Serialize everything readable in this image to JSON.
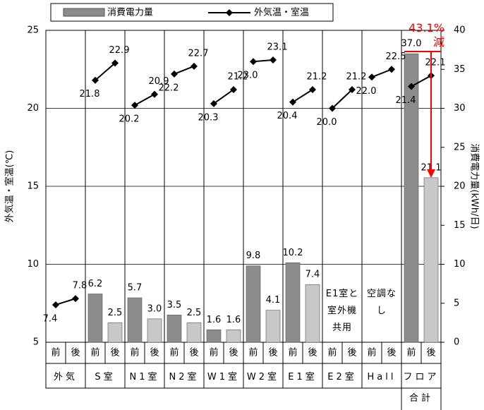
{
  "chart_data": {
    "type": "bar_line",
    "categories": [
      "外気",
      "S室",
      "N1室",
      "N2室",
      "W1室",
      "W2室",
      "E1室",
      "E2室",
      "Hall",
      "フロア合計"
    ],
    "subcategories": [
      "前",
      "後"
    ],
    "group_notes": [
      null,
      null,
      null,
      null,
      null,
      null,
      null,
      "E1室と室外機共用",
      "空調なし",
      null
    ],
    "ylabel": "外気温・室温(℃)",
    "y2label": "消費電力量(kWh/日)",
    "ylim": [
      5,
      25
    ],
    "yticks": [
      5,
      10,
      15,
      20,
      25
    ],
    "y2lim": [
      0,
      40
    ],
    "y2ticks": [
      0,
      5,
      10,
      15,
      20,
      25,
      30,
      35,
      40
    ],
    "grid": true,
    "annotation": "43.1%減",
    "annotation_color": "#ff0000",
    "series": [
      {
        "name": "消費電力量",
        "type": "bar",
        "axis": "y2",
        "colors": [
          "#8c8c8c",
          "#c8c8c8"
        ],
        "values": [
          [
            null,
            null
          ],
          [
            6.2,
            2.5
          ],
          [
            5.7,
            3.0
          ],
          [
            3.5,
            2.5
          ],
          [
            1.6,
            1.6
          ],
          [
            9.8,
            4.1
          ],
          [
            10.2,
            7.4
          ],
          [
            null,
            null
          ],
          [
            null,
            null
          ],
          [
            37,
            21.1
          ]
        ],
        "value_labels": [
          [
            null,
            null
          ],
          [
            "6.2",
            "2.5"
          ],
          [
            "5.7",
            "3.0"
          ],
          [
            "3.5",
            "2.5"
          ],
          [
            "1.6",
            "1.6"
          ],
          [
            "9.8",
            "4.1"
          ],
          [
            "10.2",
            "7.4"
          ],
          [
            null,
            null
          ],
          [
            null,
            null
          ],
          [
            "37.0",
            "21.1"
          ]
        ]
      },
      {
        "name": "外気温・室温",
        "type": "line",
        "color": "#000000",
        "values": [
          [
            7.4,
            7.8
          ],
          [
            21.8,
            22.9
          ],
          [
            20.2,
            20.9
          ],
          [
            22.2,
            22.7
          ],
          [
            20.3,
            21.2
          ],
          [
            23,
            23.1
          ],
          [
            20.4,
            21.2
          ],
          [
            20,
            21.2
          ],
          [
            22,
            22.5
          ],
          [
            21.4,
            22.1
          ]
        ],
        "value_labels": [
          [
            "7.4",
            "7.8"
          ],
          [
            "21.8",
            "22.9"
          ],
          [
            "20.2",
            "20.9"
          ],
          [
            "22.2",
            "22.7"
          ],
          [
            "20.3",
            "21.2"
          ],
          [
            "23.0",
            "23.1"
          ],
          [
            "20.4",
            "21.2"
          ],
          [
            "20.0",
            "21.2"
          ],
          [
            "22.0",
            "22.5"
          ],
          [
            "21.4",
            "22.1"
          ]
        ]
      }
    ]
  }
}
